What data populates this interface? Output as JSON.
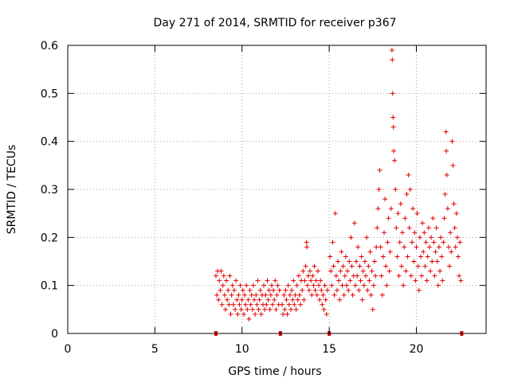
{
  "chart_data": {
    "type": "scatter",
    "title": "Day 271 of 2014, SRMTID for receiver p367",
    "xlabel": "GPS time / hours",
    "ylabel": "SRMTID / TECUs",
    "xlim": [
      0,
      24
    ],
    "ylim": [
      0,
      0.6
    ],
    "xticks": [
      0,
      5,
      10,
      15,
      20
    ],
    "yticks": [
      0,
      0.1,
      0.2,
      0.3,
      0.4,
      0.5,
      0.6
    ],
    "ytick_labels": [
      "0",
      "0.1",
      "0.2",
      "0.3",
      "0.4",
      "0.5",
      "0.6"
    ],
    "grid": true,
    "marker": "+",
    "color": "#e00000",
    "gap_markers_x": [
      8.5,
      12.2,
      15.0,
      22.6
    ],
    "series": [
      {
        "name": "SRMTID",
        "points": [
          [
            8.5,
            0.12
          ],
          [
            8.55,
            0.08
          ],
          [
            8.6,
            0.13
          ],
          [
            8.65,
            0.07
          ],
          [
            8.7,
            0.11
          ],
          [
            8.75,
            0.09
          ],
          [
            8.8,
            0.13
          ],
          [
            8.85,
            0.06
          ],
          [
            8.9,
            0.1
          ],
          [
            8.95,
            0.12
          ],
          [
            9.0,
            0.08
          ],
          [
            9.05,
            0.05
          ],
          [
            9.1,
            0.11
          ],
          [
            9.15,
            0.07
          ],
          [
            9.2,
            0.09
          ],
          [
            9.25,
            0.06
          ],
          [
            9.3,
            0.12
          ],
          [
            9.35,
            0.04
          ],
          [
            9.4,
            0.08
          ],
          [
            9.45,
            0.1
          ],
          [
            9.5,
            0.06
          ],
          [
            9.55,
            0.09
          ],
          [
            9.6,
            0.05
          ],
          [
            9.65,
            0.11
          ],
          [
            9.7,
            0.07
          ],
          [
            9.75,
            0.04
          ],
          [
            9.8,
            0.08
          ],
          [
            9.85,
            0.06
          ],
          [
            9.9,
            0.1
          ],
          [
            9.95,
            0.05
          ],
          [
            10.0,
            0.07
          ],
          [
            10.05,
            0.09
          ],
          [
            10.1,
            0.04
          ],
          [
            10.15,
            0.08
          ],
          [
            10.2,
            0.06
          ],
          [
            10.25,
            0.1
          ],
          [
            10.3,
            0.05
          ],
          [
            10.35,
            0.07
          ],
          [
            10.4,
            0.03
          ],
          [
            10.45,
            0.09
          ],
          [
            10.5,
            0.06
          ],
          [
            10.55,
            0.08
          ],
          [
            10.6,
            0.05
          ],
          [
            10.65,
            0.1
          ],
          [
            10.7,
            0.07
          ],
          [
            10.75,
            0.04
          ],
          [
            10.8,
            0.08
          ],
          [
            10.85,
            0.06
          ],
          [
            10.9,
            0.11
          ],
          [
            10.95,
            0.05
          ],
          [
            11.0,
            0.07
          ],
          [
            11.05,
            0.09
          ],
          [
            11.1,
            0.04
          ],
          [
            11.15,
            0.08
          ],
          [
            11.2,
            0.06
          ],
          [
            11.25,
            0.1
          ],
          [
            11.3,
            0.05
          ],
          [
            11.35,
            0.08
          ],
          [
            11.4,
            0.06
          ],
          [
            11.45,
            0.11
          ],
          [
            11.5,
            0.07
          ],
          [
            11.55,
            0.09
          ],
          [
            11.6,
            0.05
          ],
          [
            11.65,
            0.08
          ],
          [
            11.7,
            0.1
          ],
          [
            11.75,
            0.06
          ],
          [
            11.8,
            0.09
          ],
          [
            11.85,
            0.07
          ],
          [
            11.9,
            0.11
          ],
          [
            11.95,
            0.05
          ],
          [
            12.0,
            0.08
          ],
          [
            12.05,
            0.1
          ],
          [
            12.1,
            0.06
          ],
          [
            12.15,
            0.09
          ],
          [
            12.3,
            0.06
          ],
          [
            12.35,
            0.04
          ],
          [
            12.4,
            0.08
          ],
          [
            12.45,
            0.05
          ],
          [
            12.5,
            0.09
          ],
          [
            12.55,
            0.07
          ],
          [
            12.6,
            0.04
          ],
          [
            12.65,
            0.1
          ],
          [
            12.7,
            0.06
          ],
          [
            12.75,
            0.08
          ],
          [
            12.8,
            0.05
          ],
          [
            12.85,
            0.09
          ],
          [
            12.9,
            0.07
          ],
          [
            12.95,
            0.11
          ],
          [
            13.0,
            0.06
          ],
          [
            13.05,
            0.08
          ],
          [
            13.1,
            0.05
          ],
          [
            13.15,
            0.1
          ],
          [
            13.2,
            0.07
          ],
          [
            13.25,
            0.12
          ],
          [
            13.3,
            0.08
          ],
          [
            13.35,
            0.06
          ],
          [
            13.4,
            0.11
          ],
          [
            13.45,
            0.09
          ],
          [
            13.5,
            0.13
          ],
          [
            13.55,
            0.07
          ],
          [
            13.6,
            0.11
          ],
          [
            13.65,
            0.14
          ],
          [
            13.7,
            0.19
          ],
          [
            13.72,
            0.18
          ],
          [
            13.75,
            0.1
          ],
          [
            13.8,
            0.12
          ],
          [
            13.85,
            0.09
          ],
          [
            13.9,
            0.13
          ],
          [
            13.95,
            0.11
          ],
          [
            14.0,
            0.08
          ],
          [
            14.05,
            0.12
          ],
          [
            14.1,
            0.1
          ],
          [
            14.15,
            0.14
          ],
          [
            14.2,
            0.09
          ],
          [
            14.25,
            0.11
          ],
          [
            14.3,
            0.08
          ],
          [
            14.35,
            0.13
          ],
          [
            14.4,
            0.1
          ],
          [
            14.45,
            0.07
          ],
          [
            14.5,
            0.11
          ],
          [
            14.55,
            0.09
          ],
          [
            14.6,
            0.06
          ],
          [
            14.65,
            0.08
          ],
          [
            14.7,
            0.05
          ],
          [
            14.75,
            0.1
          ],
          [
            14.8,
            0.07
          ],
          [
            14.85,
            0.04
          ],
          [
            14.9,
            0.09
          ],
          [
            15.05,
            0.16
          ],
          [
            15.1,
            0.13
          ],
          [
            15.15,
            0.1
          ],
          [
            15.2,
            0.19
          ],
          [
            15.25,
            0.14
          ],
          [
            15.3,
            0.08
          ],
          [
            15.35,
            0.25
          ],
          [
            15.4,
            0.12
          ],
          [
            15.45,
            0.09
          ],
          [
            15.5,
            0.15
          ],
          [
            15.55,
            0.11
          ],
          [
            15.6,
            0.07
          ],
          [
            15.65,
            0.13
          ],
          [
            15.7,
            0.17
          ],
          [
            15.75,
            0.1
          ],
          [
            15.8,
            0.14
          ],
          [
            15.85,
            0.08
          ],
          [
            15.9,
            0.12
          ],
          [
            15.95,
            0.16
          ],
          [
            16.0,
            0.1
          ],
          [
            16.05,
            0.13
          ],
          [
            16.1,
            0.09
          ],
          [
            16.15,
            0.15
          ],
          [
            16.2,
            0.11
          ],
          [
            16.25,
            0.2
          ],
          [
            16.3,
            0.14
          ],
          [
            16.35,
            0.08
          ],
          [
            16.4,
            0.12
          ],
          [
            16.45,
            0.23
          ],
          [
            16.5,
            0.1
          ],
          [
            16.55,
            0.15
          ],
          [
            16.6,
            0.12
          ],
          [
            16.65,
            0.18
          ],
          [
            16.7,
            0.09
          ],
          [
            16.75,
            0.14
          ],
          [
            16.8,
            0.11
          ],
          [
            16.85,
            0.16
          ],
          [
            16.9,
            0.07
          ],
          [
            16.95,
            0.13
          ],
          [
            17.0,
            0.1
          ],
          [
            17.05,
            0.15
          ],
          [
            17.1,
            0.12
          ],
          [
            17.15,
            0.2
          ],
          [
            17.2,
            0.09
          ],
          [
            17.25,
            0.14
          ],
          [
            17.3,
            0.11
          ],
          [
            17.35,
            0.17
          ],
          [
            17.4,
            0.08
          ],
          [
            17.45,
            0.13
          ],
          [
            17.5,
            0.05
          ],
          [
            17.55,
            0.1
          ],
          [
            17.6,
            0.15
          ],
          [
            17.65,
            0.12
          ],
          [
            17.7,
            0.18
          ],
          [
            17.75,
            0.22
          ],
          [
            17.8,
            0.26
          ],
          [
            17.85,
            0.3
          ],
          [
            17.9,
            0.34
          ],
          [
            17.95,
            0.18
          ],
          [
            18.0,
            0.12
          ],
          [
            18.05,
            0.08
          ],
          [
            18.1,
            0.16
          ],
          [
            18.15,
            0.21
          ],
          [
            18.2,
            0.28
          ],
          [
            18.25,
            0.14
          ],
          [
            18.3,
            0.1
          ],
          [
            18.35,
            0.19
          ],
          [
            18.4,
            0.24
          ],
          [
            18.45,
            0.13
          ],
          [
            18.5,
            0.17
          ],
          [
            18.55,
            0.26
          ],
          [
            18.6,
            0.59
          ],
          [
            18.62,
            0.57
          ],
          [
            18.64,
            0.5
          ],
          [
            18.66,
            0.45
          ],
          [
            18.68,
            0.43
          ],
          [
            18.7,
            0.38
          ],
          [
            18.75,
            0.36
          ],
          [
            18.8,
            0.3
          ],
          [
            18.85,
            0.22
          ],
          [
            18.9,
            0.16
          ],
          [
            18.95,
            0.25
          ],
          [
            19.0,
            0.12
          ],
          [
            19.05,
            0.19
          ],
          [
            19.1,
            0.27
          ],
          [
            19.15,
            0.14
          ],
          [
            19.2,
            0.21
          ],
          [
            19.25,
            0.1
          ],
          [
            19.3,
            0.18
          ],
          [
            19.35,
            0.24
          ],
          [
            19.4,
            0.13
          ],
          [
            19.45,
            0.29
          ],
          [
            19.5,
            0.16
          ],
          [
            19.55,
            0.33
          ],
          [
            19.6,
            0.22
          ],
          [
            19.65,
            0.3
          ],
          [
            19.7,
            0.12
          ],
          [
            19.75,
            0.19
          ],
          [
            19.8,
            0.26
          ],
          [
            19.85,
            0.15
          ],
          [
            19.9,
            0.21
          ],
          [
            19.95,
            0.11
          ],
          [
            20.0,
            0.18
          ],
          [
            20.05,
            0.25
          ],
          [
            20.1,
            0.14
          ],
          [
            20.15,
            0.09
          ],
          [
            20.2,
            0.2
          ],
          [
            20.25,
            0.16
          ],
          [
            20.3,
            0.12
          ],
          [
            20.35,
            0.23
          ],
          [
            20.4,
            0.17
          ],
          [
            20.45,
            0.21
          ],
          [
            20.5,
            0.14
          ],
          [
            20.55,
            0.19
          ],
          [
            20.6,
            0.11
          ],
          [
            20.65,
            0.16
          ],
          [
            20.7,
            0.22
          ],
          [
            20.75,
            0.18
          ],
          [
            20.8,
            0.13
          ],
          [
            20.85,
            0.2
          ],
          [
            20.9,
            0.15
          ],
          [
            20.95,
            0.24
          ],
          [
            21.0,
            0.19
          ],
          [
            21.05,
            0.12
          ],
          [
            21.1,
            0.17
          ],
          [
            21.15,
            0.22
          ],
          [
            21.2,
            0.15
          ],
          [
            21.25,
            0.1
          ],
          [
            21.3,
            0.18
          ],
          [
            21.35,
            0.13
          ],
          [
            21.4,
            0.2
          ],
          [
            21.45,
            0.16
          ],
          [
            21.5,
            0.11
          ],
          [
            21.55,
            0.19
          ],
          [
            21.6,
            0.24
          ],
          [
            21.65,
            0.29
          ],
          [
            21.7,
            0.42
          ],
          [
            21.72,
            0.38
          ],
          [
            21.75,
            0.33
          ],
          [
            21.8,
            0.26
          ],
          [
            21.85,
            0.18
          ],
          [
            21.9,
            0.14
          ],
          [
            21.95,
            0.21
          ],
          [
            22.0,
            0.17
          ],
          [
            22.05,
            0.4
          ],
          [
            22.1,
            0.35
          ],
          [
            22.15,
            0.27
          ],
          [
            22.2,
            0.22
          ],
          [
            22.25,
            0.18
          ],
          [
            22.3,
            0.25
          ],
          [
            22.35,
            0.2
          ],
          [
            22.4,
            0.16
          ],
          [
            22.45,
            0.12
          ],
          [
            22.5,
            0.19
          ],
          [
            22.55,
            0.11
          ]
        ]
      }
    ]
  }
}
